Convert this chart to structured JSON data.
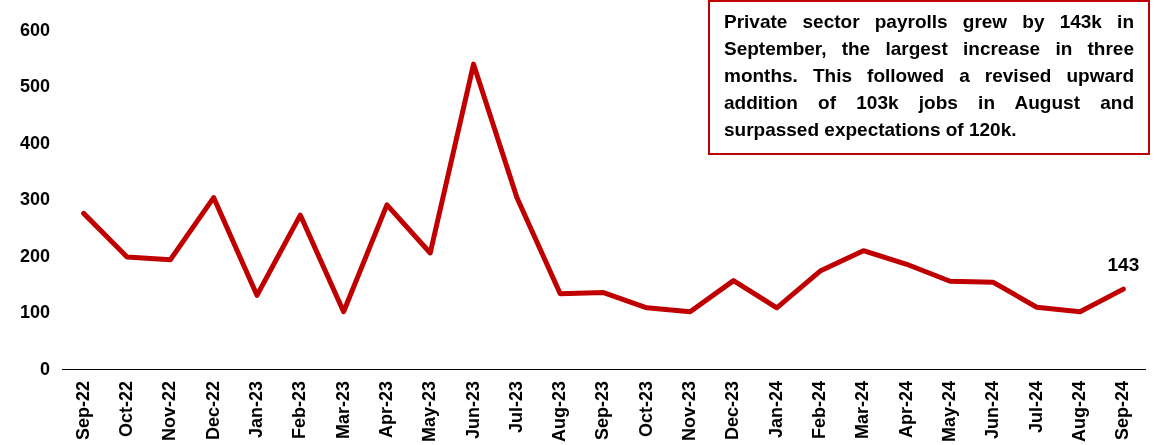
{
  "chart_data": {
    "type": "line",
    "categories": [
      "Sep-22",
      "Oct-22",
      "Nov-22",
      "Dec-22",
      "Jan-23",
      "Feb-23",
      "Mar-23",
      "Apr-23",
      "May-23",
      "Jun-23",
      "Jul-23",
      "Aug-23",
      "Sep-23",
      "Oct-23",
      "Nov-23",
      "Dec-23",
      "Jan-24",
      "Feb-24",
      "Mar-24",
      "Apr-24",
      "May-24",
      "Jun-24",
      "Jul-24",
      "Aug-24",
      "Sep-24"
    ],
    "series": [
      {
        "color": "#c00000",
        "values": [
          277,
          200,
          195,
          305,
          132,
          274,
          103,
          292,
          207,
          541,
          305,
          135,
          137,
          110,
          103,
          158,
          110,
          175,
          211,
          187,
          157,
          155,
          111,
          103,
          143
        ],
        "value_labels": [
          null,
          null,
          null,
          null,
          null,
          null,
          null,
          null,
          null,
          null,
          null,
          null,
          null,
          null,
          null,
          null,
          null,
          null,
          null,
          null,
          null,
          null,
          null,
          null,
          "143"
        ]
      }
    ],
    "ylim": [
      0,
      600
    ],
    "yticks": [
      0,
      100,
      200,
      300,
      400,
      500,
      600
    ],
    "grid": false,
    "legend": false,
    "marker": "none",
    "line_style": "solid",
    "annotations": [
      "Private sector payrolls grew by 143k in September, the largest increase in three months. This followed a revised upward addition of 103k jobs in August and surpassed expectations of 120k."
    ]
  }
}
